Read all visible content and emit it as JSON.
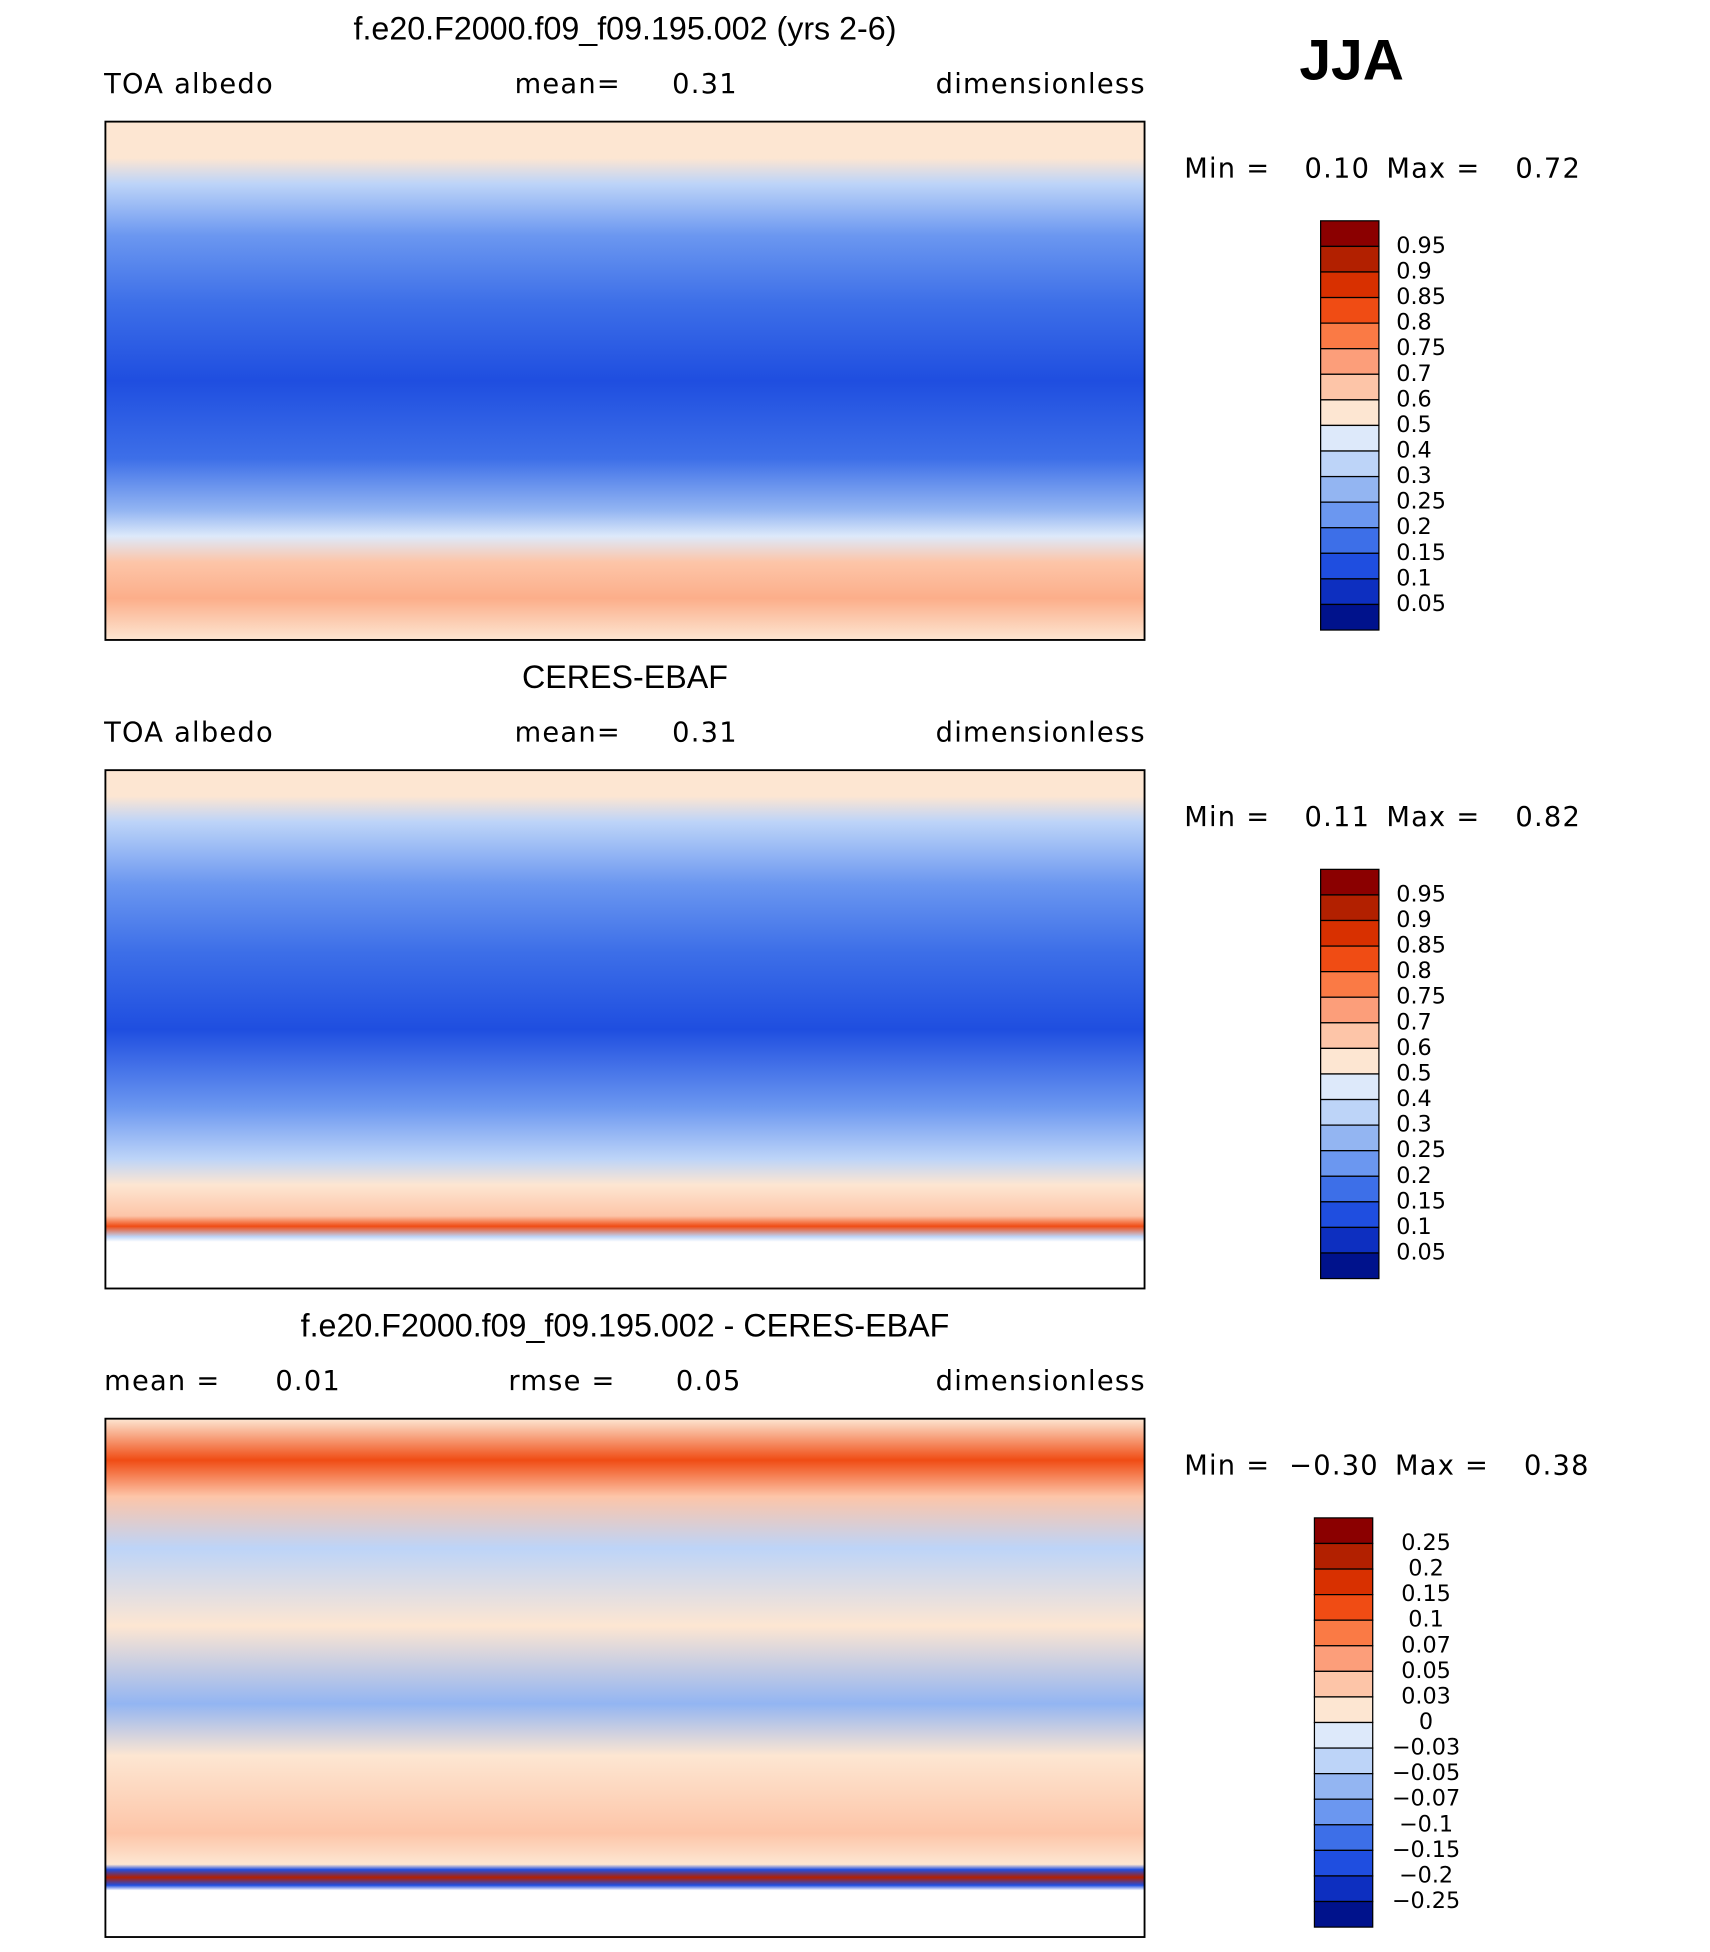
{
  "season": "JJA",
  "panels": [
    {
      "title": "f.e20.F2000.f09_f09.195.002 (yrs 2-6)",
      "left_label": "TOA albedo",
      "center_label": "mean=",
      "center_value": "0.31",
      "right_label": "dimensionless",
      "min_label": "Min =",
      "min": "0.10",
      "max_label": "Max =",
      "max": "0.72",
      "colorbar": [
        "0.95",
        "0.9",
        "0.85",
        "0.8",
        "0.75",
        "0.7",
        "0.6",
        "0.5",
        "0.4",
        "0.3",
        "0.25",
        "0.2",
        "0.15",
        "0.1",
        "0.05"
      ]
    },
    {
      "title": "CERES-EBAF",
      "left_label": "TOA albedo",
      "center_label": "mean=",
      "center_value": "0.31",
      "right_label": "dimensionless",
      "min_label": "Min =",
      "min": "0.11",
      "max_label": "Max =",
      "max": "0.82",
      "colorbar": [
        "0.95",
        "0.9",
        "0.85",
        "0.8",
        "0.75",
        "0.7",
        "0.6",
        "0.5",
        "0.4",
        "0.3",
        "0.25",
        "0.2",
        "0.15",
        "0.1",
        "0.05"
      ]
    },
    {
      "title": "f.e20.F2000.f09_f09.195.002 - CERES-EBAF",
      "left_label": "mean =",
      "left_value": "0.01",
      "center_label": "rmse =",
      "center_value": "0.05",
      "right_label": "dimensionless",
      "min_label": "Min =",
      "min": "−0.30",
      "max_label": "Max =",
      "max": "0.38",
      "colorbar": [
        "0.25",
        "0.2",
        "0.15",
        "0.1",
        "0.07",
        "0.05",
        "0.03",
        "0",
        "−0.03",
        "−0.05",
        "−0.07",
        "−0.1",
        "−0.15",
        "−0.2",
        "−0.25"
      ]
    }
  ]
}
